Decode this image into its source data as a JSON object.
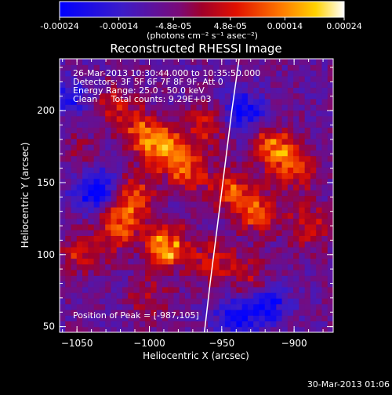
{
  "colorbar": {
    "tick_labels": [
      "-0.00024",
      "-0.00014",
      "-4.8e-05",
      "4.8e-05",
      "0.00014",
      "0.00024"
    ],
    "tick_values": [
      -0.00024,
      -0.00014,
      -4.8e-05,
      4.8e-05,
      0.00014,
      0.00024
    ],
    "range": [
      -0.00024,
      0.00024
    ],
    "units": "(photons cm⁻² s⁻¹ asec⁻²)"
  },
  "chart_data": {
    "type": "heatmap",
    "title": "Reconstructed RHESSI Image",
    "xlabel": "Heliocentric X (arcsec)",
    "ylabel": "Heliocentric Y (arcsec)",
    "xlim": [
      -1062,
      -873
    ],
    "ylim": [
      46,
      236
    ],
    "x_ticks": [
      -1050,
      -1000,
      -950,
      -900
    ],
    "x_tick_labels": [
      "−1050",
      "−1000",
      "−950",
      "−900"
    ],
    "y_ticks": [
      50,
      100,
      150,
      200
    ],
    "y_tick_labels": [
      "50",
      "100",
      "150",
      "200"
    ],
    "annotations": [
      "26-Mar-2013 10:30:44.000 to 10:35:50.000",
      "Detectors: 3F 5F 6F 7F 8F 9F, Att 0",
      "Energy Range: 25.0 - 50.0 keV",
      "Clean     Total counts: 9.29E+03"
    ],
    "peak_label": "Position of Peak = [-987,105]",
    "limb_curve": [
      [
        -962,
        46
      ],
      [
        -958,
        80
      ],
      [
        -953,
        120
      ],
      [
        -948,
        160
      ],
      [
        -943,
        200
      ],
      [
        -938,
        236
      ]
    ],
    "bright_regions": [
      {
        "x": -1025,
        "y": 205,
        "level": 0.0001
      },
      {
        "x": -1005,
        "y": 185,
        "level": 0.00016
      },
      {
        "x": -990,
        "y": 175,
        "level": 0.0002
      },
      {
        "x": -975,
        "y": 160,
        "level": 0.00017
      },
      {
        "x": -1010,
        "y": 140,
        "level": 0.00016
      },
      {
        "x": -1020,
        "y": 120,
        "level": 0.00018
      },
      {
        "x": -988,
        "y": 105,
        "level": 0.00024
      },
      {
        "x": -1045,
        "y": 100,
        "level": 0.00012
      },
      {
        "x": -1000,
        "y": 70,
        "level": 8e-05
      },
      {
        "x": -955,
        "y": 95,
        "level": 0.00013
      },
      {
        "x": -945,
        "y": 145,
        "level": 0.00015
      },
      {
        "x": -925,
        "y": 130,
        "level": 0.00017
      },
      {
        "x": -915,
        "y": 175,
        "level": 0.00018
      },
      {
        "x": -900,
        "y": 160,
        "level": 0.00016
      },
      {
        "x": -890,
        "y": 120,
        "level": 0.00012
      },
      {
        "x": -930,
        "y": 85,
        "level": 8e-05
      },
      {
        "x": -960,
        "y": 190,
        "level": 0.00012
      },
      {
        "x": -1050,
        "y": 170,
        "level": 5e-05
      }
    ],
    "dark_regions": [
      {
        "x": -1038,
        "y": 145,
        "level": -0.00018
      },
      {
        "x": -935,
        "y": 200,
        "level": -0.00016
      },
      {
        "x": -918,
        "y": 65,
        "level": -0.00016
      },
      {
        "x": -940,
        "y": 55,
        "level": -0.00014
      },
      {
        "x": -1055,
        "y": 210,
        "level": -0.00012
      }
    ]
  },
  "footer": {
    "timestamp": "30-Mar-2013 01:06"
  }
}
